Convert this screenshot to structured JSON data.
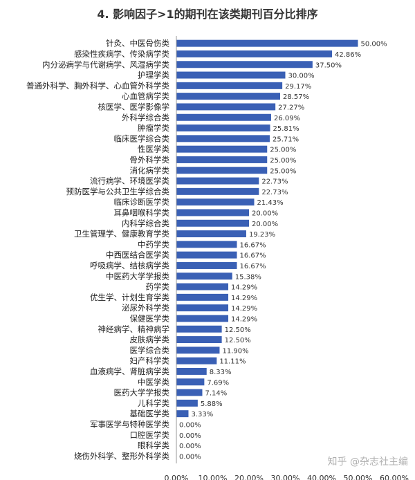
{
  "chart_data": {
    "type": "bar",
    "orientation": "horizontal",
    "title": "4. 影响因子>1的期刊在该类期刊百分比排序",
    "categories": [
      "针灸、中医骨伤类",
      "感染性疾病学、传染病学类",
      "内分泌病学与代谢病学、风湿病学类",
      "护理学类",
      "普通外科学、胸外科学、心血管外科学类",
      "心血管病学类",
      "核医学、医学影像学",
      "外科学综合类",
      "肿瘤学类",
      "临床医学综合类",
      "性医学类",
      "骨外科学类",
      "消化病学类",
      "流行病学、环境医学类",
      "预防医学与公共卫生学综合类",
      "临床诊断医学类",
      "耳鼻咽喉科学类",
      "内科学综合类",
      "卫生管理学、健康教育学类",
      "中药学类",
      "中西医结合医学类",
      "呼吸病学、结核病学类",
      "中医药大学学报类",
      "药学类",
      "优生学、计划生育学类",
      "泌尿外科学类",
      "保健医学类",
      "神经病学、精神病学",
      "皮肤病学类",
      "医学综合类",
      "妇产科学类",
      "血液病学、肾脏病学类",
      "中医学类",
      "医药大学学报类",
      "儿科学类",
      "基础医学类",
      "军事医学与特种医学类",
      "口腔医学类",
      "眼科学类",
      "烧伤外科学、整形外科学类"
    ],
    "values": [
      50.0,
      42.86,
      37.5,
      30.0,
      29.17,
      28.57,
      27.27,
      26.09,
      25.81,
      25.71,
      25.0,
      25.0,
      25.0,
      22.73,
      22.73,
      21.43,
      20.0,
      20.0,
      19.23,
      16.67,
      16.67,
      16.67,
      15.38,
      14.29,
      14.29,
      14.29,
      14.29,
      12.5,
      12.5,
      11.9,
      11.11,
      8.33,
      7.69,
      7.14,
      5.88,
      3.33,
      0.0,
      0.0,
      0.0,
      0.0
    ],
    "value_labels": [
      "50.00%",
      "42.86%",
      "37.50%",
      "30.00%",
      "29.17%",
      "28.57%",
      "27.27%",
      "26.09%",
      "25.81%",
      "25.71%",
      "25.00%",
      "25.00%",
      "25.00%",
      "22.73%",
      "22.73%",
      "21.43%",
      "20.00%",
      "20.00%",
      "19.23%",
      "16.67%",
      "16.67%",
      "16.67%",
      "15.38%",
      "14.29%",
      "14.29%",
      "14.29%",
      "14.29%",
      "12.50%",
      "12.50%",
      "11.90%",
      "11.11%",
      "8.33%",
      "7.69%",
      "7.14%",
      "5.88%",
      "3.33%",
      "0.00%",
      "0.00%",
      "0.00%",
      "0.00%"
    ],
    "xlim": [
      0,
      60
    ],
    "xticks": [
      0,
      10,
      20,
      30,
      40,
      50,
      60
    ],
    "xtick_labels": [
      "0.00%",
      "10.00%",
      "20.00%",
      "30.00%",
      "40.00%",
      "50.00%",
      "60.00%"
    ],
    "bar_color": "#3a60b5",
    "grid": false,
    "legend": "none"
  },
  "watermark": "知乎 @杂志社主编"
}
